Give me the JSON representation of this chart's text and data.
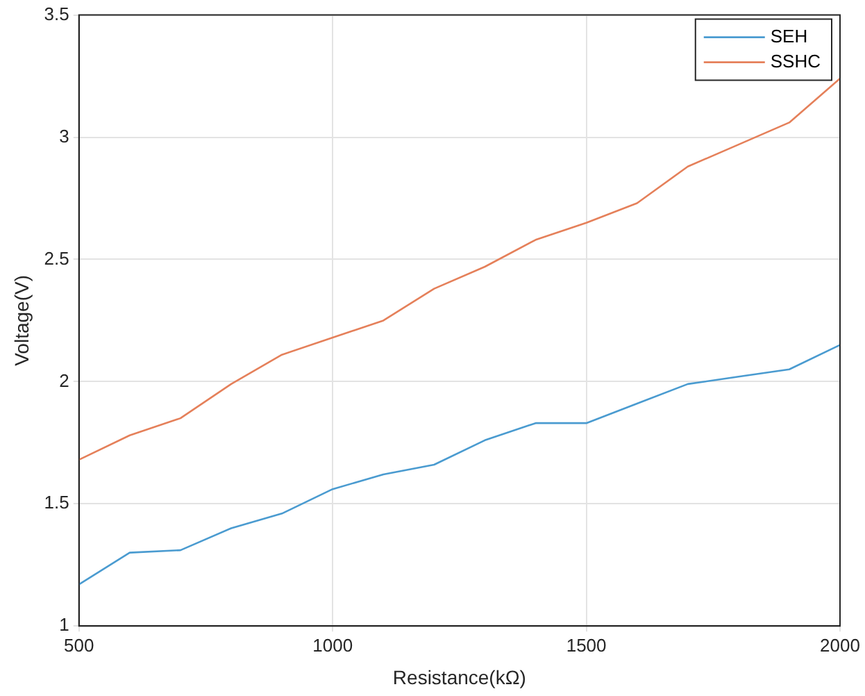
{
  "chart_data": {
    "type": "line",
    "xlabel": "Resistance(kΩ)",
    "ylabel": "Voltage(V)",
    "x": [
      500,
      600,
      700,
      800,
      900,
      1000,
      1100,
      1200,
      1300,
      1400,
      1500,
      1600,
      1700,
      1800,
      1900,
      2000
    ],
    "series": [
      {
        "name": "SEH",
        "color": "#4a9bd0",
        "values": [
          1.17,
          1.3,
          1.31,
          1.4,
          1.46,
          1.56,
          1.62,
          1.66,
          1.76,
          1.83,
          1.83,
          1.91,
          1.99,
          2.02,
          2.05,
          2.15
        ]
      },
      {
        "name": "SSHC",
        "color": "#e5805a",
        "values": [
          1.68,
          1.78,
          1.85,
          1.99,
          2.11,
          2.18,
          2.25,
          2.38,
          2.47,
          2.58,
          2.65,
          2.73,
          2.88,
          2.97,
          3.06,
          3.24
        ]
      }
    ],
    "xlim": [
      500,
      2000
    ],
    "xticks": [
      500,
      1000,
      1500,
      2000
    ],
    "ylim": [
      1,
      3.5
    ],
    "yticks": [
      1,
      1.5,
      2,
      2.5,
      3,
      3.5
    ],
    "grid": true,
    "legend": "top right",
    "marker": "none",
    "line_style": "solid"
  }
}
